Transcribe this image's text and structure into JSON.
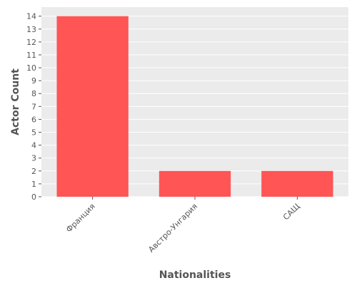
{
  "chart_data": {
    "type": "bar",
    "categories": [
      "Франция",
      "Австро-Унгария",
      "САЩ"
    ],
    "values": [
      14,
      2,
      2
    ],
    "title": "",
    "xlabel": "Nationalities",
    "ylabel": "Actor Count",
    "ylim": [
      0,
      14.7
    ],
    "yticks": [
      0,
      1,
      2,
      3,
      4,
      5,
      6,
      7,
      8,
      9,
      10,
      11,
      12,
      13,
      14
    ],
    "grid": true,
    "colors": {
      "bar": "#ff5555",
      "plot_background": "#ebebeb",
      "grid": "#ffffff",
      "text": "#555555"
    }
  }
}
